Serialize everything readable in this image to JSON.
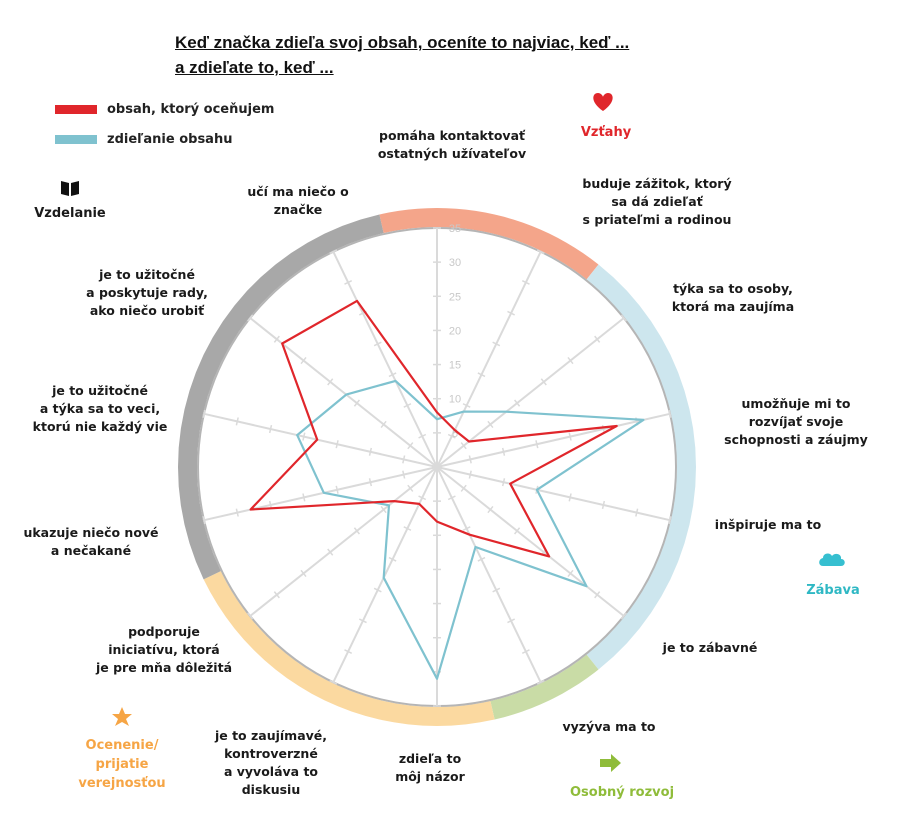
{
  "title_lines": [
    "Keď značka zdieľa svoj obsah, oceníte to najviac, keď ...",
    "a zdieľate to, keď ..."
  ],
  "colors": {
    "appreciate": "#e0262b",
    "share": "#7fc2cf",
    "vztahy": "#f4a58a",
    "zabava": "#cde6ee",
    "rozvoj": "#c9dca6",
    "ocenenie": "#fbd9a0",
    "vzdelanie": "#a8a8a8",
    "grid": "#dadada"
  },
  "chart_data": {
    "type": "radar",
    "title": "Keď značka zdieľa svoj obsah, oceníte to najviac, keď ... a zdieľate to, keď ...",
    "categories": [
      "pomáha kontaktovať ostatných užívateľov",
      "buduje zážitok, ktorý sa dá zdieľať s priateľmi a rodinou",
      "týka sa to osoby, ktorá ma zaujíma",
      "umožňuje mi to rozvíjať svoje schopnosti a záujmy",
      "inšpiruje ma to",
      "je to zábavné",
      "vyzýva ma to",
      "zdieľa to môj názor",
      "je to zaujímavé, kontroverzné a vyvoláva to diskusiu",
      "podporuje iniciatívu, ktorá je pre mňa dôležitá",
      "ukazuje niečo nové a nečakané",
      "je to užitočné a týka sa to veci, ktorú nie každý vie",
      "je to užitočné a poskytuje rady, ako niečo urobiť",
      "učí ma niečo o značke"
    ],
    "category_labels": [
      [
        "pomáha kontaktovať",
        "ostatných užívateľov"
      ],
      [
        "buduje zážitok, ktorý",
        "sa dá zdieľať",
        "s priateľmi a rodinou"
      ],
      [
        "týka sa to osoby,",
        "ktorá ma zaujíma"
      ],
      [
        "umožňuje mi to",
        "rozvíjať svoje",
        "schopnosti a záujmy"
      ],
      [
        "inšpiruje ma to"
      ],
      [
        "je to zábavné"
      ],
      [
        "vyzýva ma to"
      ],
      [
        "zdieľa to",
        "môj názor"
      ],
      [
        "je to zaujímavé,",
        "kontroverzné",
        "a vyvoláva to",
        "diskusiu"
      ],
      [
        "podporuje",
        "iniciatívu, ktorá",
        "je pre mňa dôležitá"
      ],
      [
        "ukazuje niečo nové",
        "a nečakané"
      ],
      [
        "je to užitočné",
        "a týka sa to veci,",
        "ktorú nie každý vie"
      ],
      [
        "je to užitočné",
        "a poskytuje rady,",
        "ako niečo urobiť"
      ],
      [
        "učí ma niečo o",
        "značke"
      ]
    ],
    "series": [
      {
        "name": "obsah, ktorý oceňujem",
        "values": [
          8,
          6,
          6,
          27,
          11,
          21,
          11,
          8,
          6,
          8,
          28,
          18,
          29,
          27
        ]
      },
      {
        "name": "zdieľanie obsahu",
        "values": [
          7,
          9,
          13,
          31,
          15,
          28,
          13,
          31,
          18,
          9,
          17,
          21,
          17,
          14
        ]
      }
    ],
    "ylim": [
      0,
      35
    ],
    "ticks": [
      "5",
      "10",
      "15",
      "20",
      "25",
      "30",
      "35"
    ],
    "groups": [
      {
        "label": "Vzťahy",
        "icon": "heart-icon",
        "from": 0,
        "to": 1
      },
      {
        "label": "Zábava",
        "icon": "cloud-icon",
        "from": 2,
        "to": 5
      },
      {
        "label": "Osobný rozvoj",
        "icon": "arrow-right-icon",
        "from": 6,
        "to": 6
      },
      {
        "label": "Ocenenie/ prijatie verejnosťou",
        "icon": "star-icon",
        "from": 7,
        "to": 9
      },
      {
        "label": "Vzdelanie",
        "icon": "book-icon",
        "from": 10,
        "to": 13
      }
    ]
  },
  "group_labels": {
    "vztahy": "Vzťahy",
    "zabava": "Zábava",
    "rozvoj": "Osobný rozvoj",
    "ocenenie": [
      "Ocenenie/",
      "prijatie",
      "verejnosťou"
    ],
    "vzdelanie": "Vzdelanie"
  }
}
